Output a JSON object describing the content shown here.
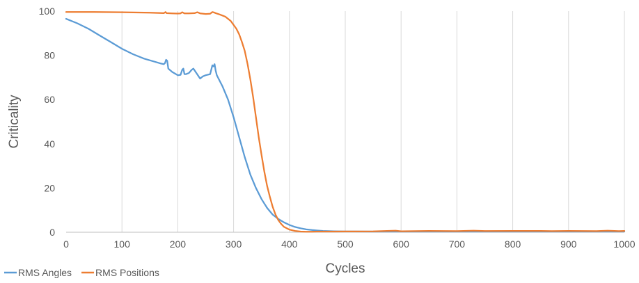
{
  "chart_data": {
    "type": "line",
    "title": "",
    "xlabel": "Cycles",
    "ylabel": "Criticality",
    "xlim": [
      0,
      1000
    ],
    "ylim": [
      0,
      100
    ],
    "xticks": [
      0,
      100,
      200,
      300,
      400,
      500,
      600,
      700,
      800,
      900,
      1000
    ],
    "yticks": [
      0,
      20,
      40,
      60,
      80,
      100
    ],
    "grid": "vertical",
    "legend": "bottom-left",
    "series": [
      {
        "name": "RMS Angles",
        "color": "#5b9bd5",
        "x": [
          0,
          20,
          40,
          60,
          80,
          100,
          120,
          140,
          160,
          170,
          175,
          177,
          179,
          181,
          183,
          190,
          200,
          205,
          208,
          210,
          212,
          215,
          220,
          225,
          228,
          232,
          240,
          245,
          250,
          258,
          262,
          264,
          266,
          268,
          270,
          280,
          290,
          300,
          310,
          320,
          330,
          340,
          350,
          360,
          370,
          380,
          390,
          400,
          410,
          420,
          430,
          440,
          450,
          460,
          470,
          480,
          490,
          500,
          550,
          600,
          650,
          700,
          750,
          800,
          850,
          900,
          950,
          1000
        ],
        "y": [
          96.5,
          94.5,
          92,
          89,
          86,
          83,
          80.5,
          78.5,
          77,
          76.3,
          76,
          76.5,
          78,
          77.5,
          74,
          72.5,
          71,
          71.2,
          73.5,
          74,
          71.5,
          71.5,
          72,
          73.5,
          74,
          72.5,
          69.5,
          70.5,
          71,
          71.5,
          75.5,
          75,
          76,
          73,
          71,
          66,
          60,
          52,
          43,
          34,
          26,
          20,
          15,
          11,
          8,
          6,
          4.5,
          3.3,
          2.4,
          1.8,
          1.3,
          1,
          0.8,
          0.6,
          0.5,
          0.45,
          0.4,
          0.35,
          0.3,
          0.3,
          0.3,
          0.3,
          0.3,
          0.3,
          0.3,
          0.3,
          0.3,
          0.3
        ]
      },
      {
        "name": "RMS Positions",
        "color": "#ed7d31",
        "x": [
          0,
          50,
          100,
          150,
          175,
          178,
          180,
          190,
          200,
          205,
          208,
          212,
          220,
          230,
          235,
          240,
          250,
          258,
          262,
          265,
          268,
          275,
          285,
          295,
          305,
          310,
          315,
          320,
          325,
          330,
          335,
          340,
          345,
          350,
          355,
          360,
          365,
          370,
          375,
          380,
          385,
          390,
          400,
          410,
          420,
          430,
          440,
          450,
          460,
          480,
          500,
          550,
          590,
          600,
          650,
          700,
          730,
          750,
          800,
          850,
          870,
          900,
          950,
          970,
          990,
          1000
        ],
        "y": [
          99.6,
          99.6,
          99.5,
          99.3,
          99.1,
          99.6,
          99.1,
          99,
          98.9,
          99,
          99.5,
          99,
          99,
          99.1,
          99.5,
          99,
          98.7,
          98.8,
          99.6,
          99.4,
          99.1,
          98.5,
          97.5,
          95.5,
          92,
          89.5,
          86,
          82,
          76,
          69,
          61,
          52,
          43,
          35,
          27.5,
          21,
          16,
          11.5,
          8,
          5.5,
          3.8,
          2.5,
          1.2,
          0.6,
          0.3,
          0.25,
          0.25,
          0.3,
          0.3,
          0.3,
          0.35,
          0.4,
          0.7,
          0.45,
          0.6,
          0.5,
          0.7,
          0.55,
          0.6,
          0.6,
          0.5,
          0.6,
          0.5,
          0.7,
          0.5,
          0.6
        ]
      }
    ]
  }
}
